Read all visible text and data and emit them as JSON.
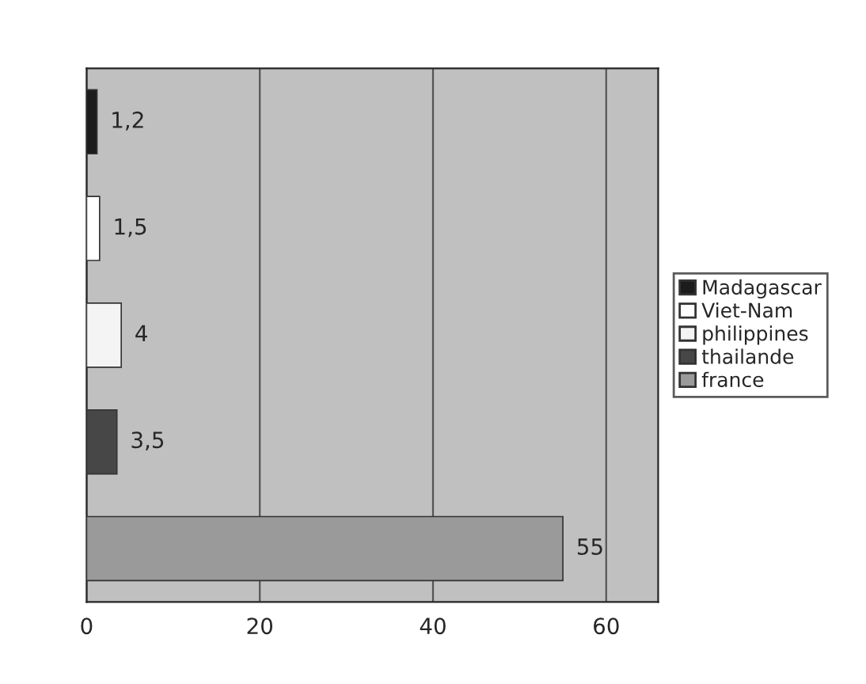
{
  "chart_data": {
    "type": "bar",
    "orientation": "horizontal",
    "categories": [
      null,
      null,
      null,
      null,
      null
    ],
    "series": [
      {
        "name": "Madagascar",
        "color": "#1c1c1c",
        "values": [
          1.2,
          null,
          null,
          null,
          null
        ],
        "value_labels": [
          "1,2",
          null,
          null,
          null,
          null
        ]
      },
      {
        "name": "Viet-Nam",
        "color": "#ffffff",
        "values": [
          null,
          1.5,
          null,
          null,
          null
        ],
        "value_labels": [
          null,
          "1,5",
          null,
          null,
          null
        ]
      },
      {
        "name": "philippines",
        "color": "#f4f4f4",
        "values": [
          null,
          null,
          4,
          null,
          null
        ],
        "value_labels": [
          null,
          null,
          "4",
          null,
          null
        ]
      },
      {
        "name": "thailande",
        "color": "#474747",
        "values": [
          null,
          null,
          null,
          3.5,
          null
        ],
        "value_labels": [
          null,
          null,
          null,
          "3,5",
          null
        ]
      },
      {
        "name": "france",
        "color": "#9a9a9a",
        "values": [
          null,
          null,
          null,
          null,
          55
        ],
        "value_labels": [
          null,
          null,
          null,
          null,
          "55"
        ]
      }
    ],
    "xlim": [
      0,
      66
    ],
    "xticks": [
      0,
      20,
      40,
      60
    ],
    "grid": "x",
    "legend": "right"
  }
}
